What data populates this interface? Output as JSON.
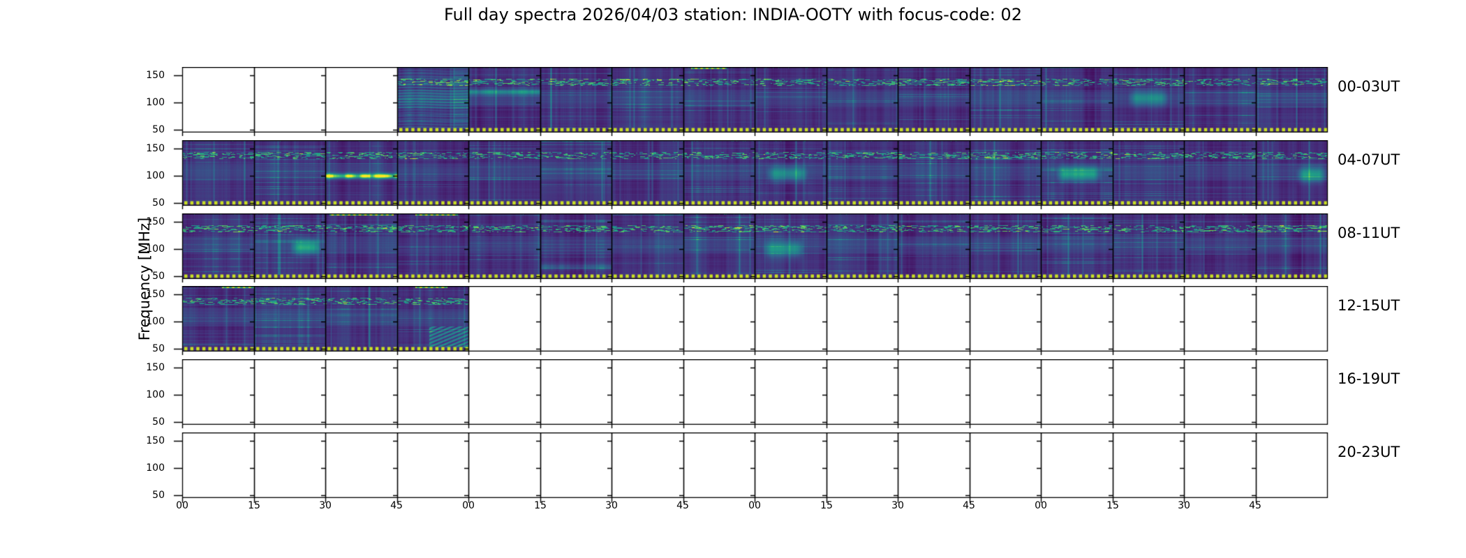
{
  "title": "Full day spectra 2026/04/03 station: INDIA-OOTY with focus-code: 02",
  "station": "INDIA-OOTY",
  "date": "2026/04/03",
  "focus_code": "02",
  "chart_data": {
    "type": "heatmap",
    "title": "Full day spectra 2026/04/03 station: INDIA-OOTY with focus-code: 02",
    "ylabel": "Frequency [MHz]",
    "colormap": "viridis",
    "freq_range_mhz": [
      45,
      165
    ],
    "y_tick_labels": [
      "150",
      "100",
      "50"
    ],
    "x_tick_labels": [
      "00",
      "15",
      "30",
      "45",
      "00",
      "15",
      "30",
      "45",
      "00",
      "15",
      "30",
      "45",
      "00",
      "15",
      "30",
      "45"
    ],
    "panels_per_row": 16,
    "minutes_per_panel": 15,
    "coverage_marker_color": "#c9df25",
    "rows": [
      {
        "label": "00-03UT",
        "hours": "00:00-04:00",
        "filled": [
          0,
          0,
          0,
          1,
          1,
          1,
          1,
          1,
          1,
          1,
          1,
          1,
          1,
          1,
          1,
          1
        ]
      },
      {
        "label": "04-07UT",
        "hours": "04:00-08:00",
        "filled": [
          1,
          1,
          1,
          1,
          1,
          1,
          1,
          1,
          1,
          1,
          1,
          1,
          1,
          1,
          1,
          1
        ]
      },
      {
        "label": "08-11UT",
        "hours": "08:00-12:00",
        "filled": [
          1,
          1,
          1,
          1,
          1,
          1,
          1,
          1,
          1,
          1,
          1,
          1,
          1,
          1,
          1,
          1
        ]
      },
      {
        "label": "12-15UT",
        "hours": "12:00-16:00",
        "filled": [
          1,
          1,
          1,
          1,
          0,
          0,
          0,
          0,
          0,
          0,
          0,
          0,
          0,
          0,
          0,
          0
        ]
      },
      {
        "label": "16-19UT",
        "hours": "16:00-20:00",
        "filled": [
          0,
          0,
          0,
          0,
          0,
          0,
          0,
          0,
          0,
          0,
          0,
          0,
          0,
          0,
          0,
          0
        ]
      },
      {
        "label": "20-23UT",
        "hours": "20:00-24:00",
        "filled": [
          0,
          0,
          0,
          0,
          0,
          0,
          0,
          0,
          0,
          0,
          0,
          0,
          0,
          0,
          0,
          0
        ]
      }
    ],
    "features": [
      {
        "row": 0,
        "panel": 3,
        "type": "stripes"
      },
      {
        "row": 0,
        "panel": 4,
        "type": "band",
        "freq": 120,
        "intensity": 0.4
      },
      {
        "row": 0,
        "panel": 4,
        "type": "dark_block",
        "f1": 45,
        "f2": 95
      },
      {
        "row": 0,
        "panel": 7,
        "type": "top_streak",
        "x1": 0.1,
        "x2": 0.6
      },
      {
        "row": 0,
        "panel": 13,
        "type": "teal_patch",
        "freq": 108,
        "x1": 0.2,
        "x2": 0.8,
        "intensity": 0.28
      },
      {
        "row": 1,
        "panel": 2,
        "type": "bright_band",
        "freq": 100,
        "intensity": 0.9
      },
      {
        "row": 1,
        "panel": 8,
        "type": "teal_patch",
        "freq": 104,
        "x1": 0.15,
        "x2": 0.75,
        "intensity": 0.3
      },
      {
        "row": 1,
        "panel": 12,
        "type": "teal_patch",
        "freq": 104,
        "x1": 0.2,
        "x2": 0.85,
        "intensity": 0.38
      },
      {
        "row": 1,
        "panel": 15,
        "type": "teal_patch",
        "freq": 102,
        "x1": 0.55,
        "x2": 1,
        "intensity": 0.35
      },
      {
        "row": 2,
        "panel": 1,
        "type": "teal_patch",
        "freq": 104,
        "x1": 0.5,
        "x2": 0.95,
        "intensity": 0.4
      },
      {
        "row": 2,
        "panel": 1,
        "type": "vertical_line",
        "x": 0.35,
        "intensity": 0.18
      },
      {
        "row": 2,
        "panel": 2,
        "type": "top_streak",
        "x1": 0.05,
        "x2": 0.95
      },
      {
        "row": 2,
        "panel": 3,
        "type": "top_streak",
        "x1": 0.25,
        "x2": 0.85
      },
      {
        "row": 2,
        "panel": 3,
        "type": "dark_block",
        "f1": 100,
        "f2": 125
      },
      {
        "row": 2,
        "panel": 5,
        "type": "band",
        "freq": 68,
        "intensity": 0.22
      },
      {
        "row": 2,
        "panel": 8,
        "type": "teal_patch",
        "freq": 100,
        "x1": 0.1,
        "x2": 0.7,
        "intensity": 0.3
      },
      {
        "row": 3,
        "panel": 0,
        "type": "top_streak",
        "x1": 0.55,
        "x2": 1
      },
      {
        "row": 3,
        "panel": 3,
        "type": "top_streak",
        "x1": 0.25,
        "x2": 0.7
      },
      {
        "row": 3,
        "panel": 3,
        "type": "wavy",
        "x1": 0.45,
        "x2": 1,
        "f1": 48,
        "f2": 92
      }
    ]
  }
}
